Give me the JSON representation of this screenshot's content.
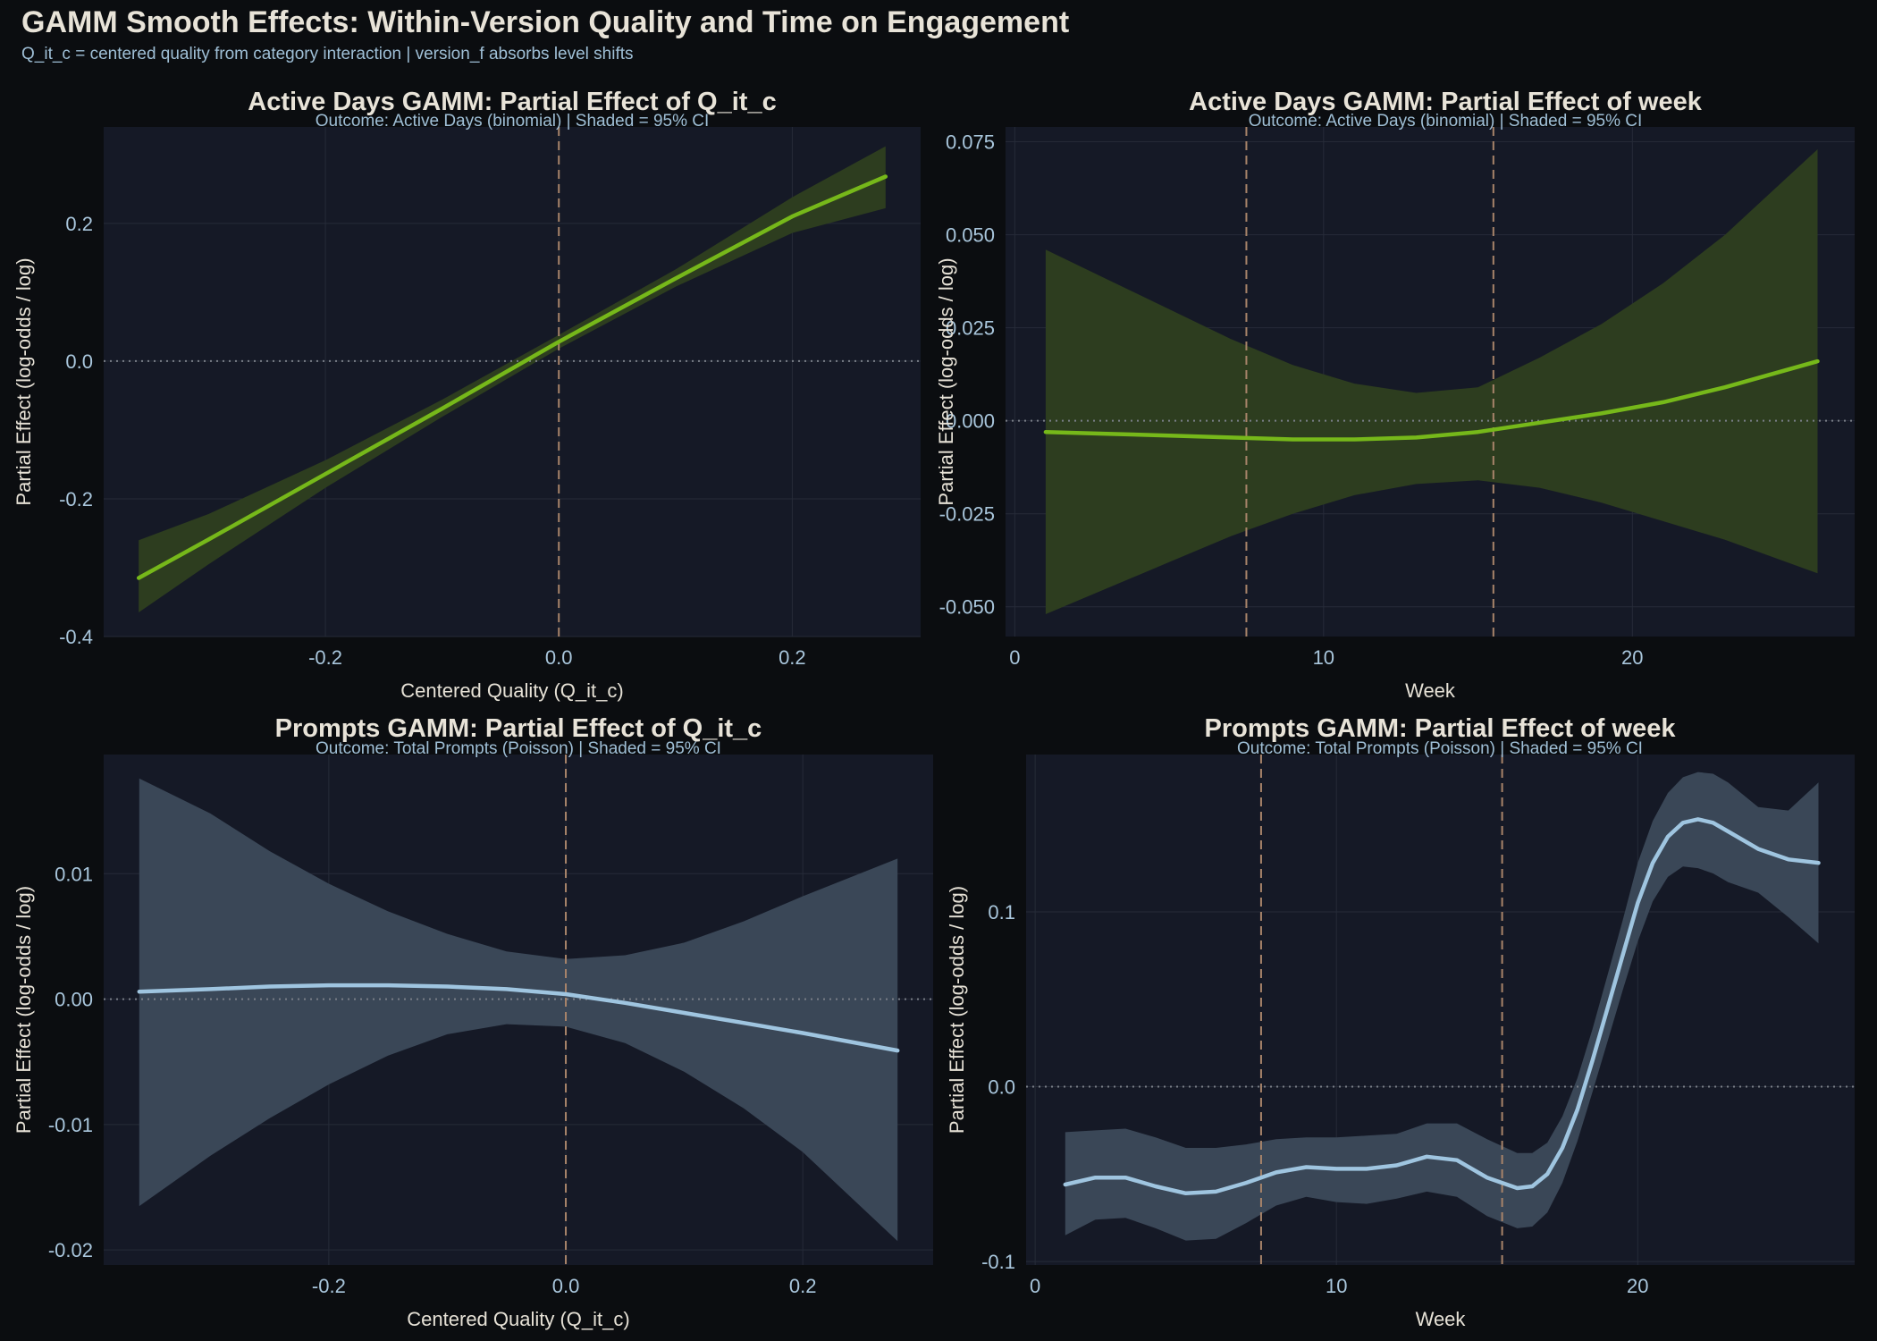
{
  "figure": {
    "title": "GAMM Smooth Effects: Within-Version Quality and Time on Engagement",
    "subtitle": "Q_it_c = centered quality from category interaction | version_f absorbs level shifts"
  },
  "colors": {
    "background": "#0b0d10",
    "panel": "#151926",
    "grid": "#262b38",
    "green_line": "#76b81a",
    "green_band": "#2d3d1f",
    "blue_line": "#9fc5e0",
    "blue_band": "#3a4757",
    "vline": "#a8846a",
    "hline": "#7a7f88"
  },
  "chart_data": [
    {
      "type": "line",
      "title": "Active Days GAMM: Partial Effect of Q_it_c",
      "subtitle": "Outcome: Active Days (binomial) | Shaded = 95% CI",
      "xlabel": "Centered Quality (Q_it_c)",
      "ylabel": "Partial Effect (log-odds / log)",
      "xlim": [
        -0.39,
        0.31
      ],
      "ylim": [
        -0.4,
        0.34
      ],
      "xticks": [
        -0.2,
        0.0,
        0.2
      ],
      "xtick_labels": [
        "-0.2",
        "0.0",
        "0.2"
      ],
      "yticks": [
        -0.4,
        -0.2,
        0.0,
        0.2
      ],
      "ytick_labels": [
        "-0.4",
        "-0.2",
        "0.0",
        "0.2"
      ],
      "vlines": [
        0.0
      ],
      "hline": 0,
      "color": "green",
      "x": [
        -0.36,
        -0.3,
        -0.2,
        -0.1,
        0.0,
        0.1,
        0.2,
        0.28
      ],
      "y": [
        -0.315,
        -0.259,
        -0.164,
        -0.069,
        0.028,
        0.12,
        0.21,
        0.268
      ],
      "lower": [
        -0.365,
        -0.295,
        -0.184,
        -0.081,
        0.018,
        0.108,
        0.186,
        0.222
      ],
      "upper": [
        -0.26,
        -0.222,
        -0.144,
        -0.056,
        0.038,
        0.133,
        0.238,
        0.312
      ]
    },
    {
      "type": "line",
      "title": "Active Days GAMM: Partial Effect of week",
      "subtitle": "Outcome: Active Days (binomial) | Shaded = 95% CI",
      "xlabel": "Week",
      "ylabel": "Partial Effect (log-odds / log)",
      "xlim": [
        -0.3,
        27.2
      ],
      "ylim": [
        -0.058,
        0.079
      ],
      "xticks": [
        0,
        10,
        20
      ],
      "xtick_labels": [
        "0",
        "10",
        "20"
      ],
      "yticks": [
        -0.05,
        -0.025,
        0.0,
        0.025,
        0.05,
        0.075
      ],
      "ytick_labels": [
        "-0.050",
        "-0.025",
        "0.000",
        "0.025",
        "0.050",
        "0.075"
      ],
      "vlines": [
        7.5,
        15.5
      ],
      "hline": 0,
      "color": "green",
      "x": [
        1,
        3,
        5,
        7,
        9,
        11,
        13,
        15,
        17,
        19,
        21,
        23,
        26
      ],
      "y": [
        -0.003,
        -0.0035,
        -0.004,
        -0.0045,
        -0.005,
        -0.005,
        -0.0045,
        -0.003,
        -0.0005,
        0.002,
        0.005,
        0.009,
        0.016
      ],
      "lower": [
        -0.052,
        -0.045,
        -0.038,
        -0.031,
        -0.025,
        -0.02,
        -0.017,
        -0.016,
        -0.018,
        -0.022,
        -0.027,
        -0.032,
        -0.041
      ],
      "upper": [
        0.046,
        0.038,
        0.03,
        0.022,
        0.015,
        0.01,
        0.0075,
        0.009,
        0.017,
        0.026,
        0.037,
        0.05,
        0.073
      ]
    },
    {
      "type": "line",
      "title": "Prompts GAMM: Partial Effect of Q_it_c",
      "subtitle": "Outcome: Total Prompts (Poisson) | Shaded = 95% CI",
      "xlabel": "Centered Quality (Q_it_c)",
      "ylabel": "Partial Effect (log-odds / log)",
      "xlim": [
        -0.39,
        0.31
      ],
      "ylim": [
        -0.0212,
        0.0195
      ],
      "xticks": [
        -0.2,
        0.0,
        0.2
      ],
      "xtick_labels": [
        "-0.2",
        "0.0",
        "0.2"
      ],
      "yticks": [
        -0.02,
        -0.01,
        0.0,
        0.01
      ],
      "ytick_labels": [
        "-0.02",
        "-0.01",
        "0.00",
        "0.01"
      ],
      "vlines": [
        0.0
      ],
      "hline": 0,
      "color": "blue",
      "x": [
        -0.36,
        -0.3,
        -0.25,
        -0.2,
        -0.15,
        -0.1,
        -0.05,
        0.0,
        0.05,
        0.1,
        0.15,
        0.2,
        0.28
      ],
      "y": [
        0.0006,
        0.0008,
        0.001,
        0.0011,
        0.0011,
        0.001,
        0.0008,
        0.0004,
        -0.0003,
        -0.0011,
        -0.0019,
        -0.0027,
        -0.0041
      ],
      "lower": [
        -0.0165,
        -0.0125,
        -0.0095,
        -0.0068,
        -0.0045,
        -0.0028,
        -0.002,
        -0.0022,
        -0.0035,
        -0.0058,
        -0.0087,
        -0.0122,
        -0.0193
      ],
      "upper": [
        0.0176,
        0.0148,
        0.0118,
        0.0092,
        0.007,
        0.0052,
        0.0038,
        0.0032,
        0.0035,
        0.0045,
        0.0062,
        0.0082,
        0.0112
      ]
    },
    {
      "type": "line",
      "title": "Prompts GAMM: Partial Effect of week",
      "subtitle": "Outcome: Total Prompts (Poisson) | Shaded = 95% CI",
      "xlabel": "Week",
      "ylabel": "Partial Effect (log-odds / log)",
      "xlim": [
        -0.3,
        27.2
      ],
      "ylim": [
        -0.102,
        0.19
      ],
      "xticks": [
        0,
        10,
        20
      ],
      "xtick_labels": [
        "0",
        "10",
        "20"
      ],
      "yticks": [
        -0.1,
        0.0,
        0.1
      ],
      "ytick_labels": [
        "-0.1",
        "0.0",
        "0.1"
      ],
      "vlines": [
        7.5,
        15.5
      ],
      "hline": 0,
      "color": "blue",
      "x": [
        1,
        2,
        3,
        4,
        5,
        6,
        7,
        8,
        9,
        10,
        11,
        12,
        13,
        14,
        15,
        16,
        16.5,
        17,
        17.5,
        18,
        18.5,
        19,
        19.5,
        20,
        20.5,
        21,
        21.5,
        22,
        22.5,
        23,
        24,
        25,
        26
      ],
      "y": [
        -0.056,
        -0.052,
        -0.052,
        -0.057,
        -0.061,
        -0.06,
        -0.055,
        -0.049,
        -0.046,
        -0.047,
        -0.047,
        -0.045,
        -0.04,
        -0.042,
        -0.052,
        -0.058,
        -0.057,
        -0.05,
        -0.035,
        -0.013,
        0.015,
        0.045,
        0.075,
        0.105,
        0.128,
        0.143,
        0.151,
        0.153,
        0.151,
        0.146,
        0.136,
        0.13,
        0.128
      ],
      "lower": [
        -0.085,
        -0.076,
        -0.075,
        -0.081,
        -0.088,
        -0.087,
        -0.078,
        -0.068,
        -0.063,
        -0.066,
        -0.067,
        -0.064,
        -0.06,
        -0.063,
        -0.074,
        -0.081,
        -0.08,
        -0.072,
        -0.055,
        -0.031,
        -0.003,
        0.026,
        0.055,
        0.083,
        0.106,
        0.12,
        0.126,
        0.125,
        0.122,
        0.117,
        0.111,
        0.097,
        0.082
      ],
      "upper": [
        -0.026,
        -0.025,
        -0.024,
        -0.029,
        -0.035,
        -0.035,
        -0.033,
        -0.03,
        -0.029,
        -0.029,
        -0.028,
        -0.027,
        -0.021,
        -0.021,
        -0.03,
        -0.038,
        -0.038,
        -0.032,
        -0.017,
        0.005,
        0.033,
        0.064,
        0.095,
        0.128,
        0.152,
        0.168,
        0.177,
        0.18,
        0.179,
        0.174,
        0.16,
        0.158,
        0.174
      ]
    }
  ]
}
